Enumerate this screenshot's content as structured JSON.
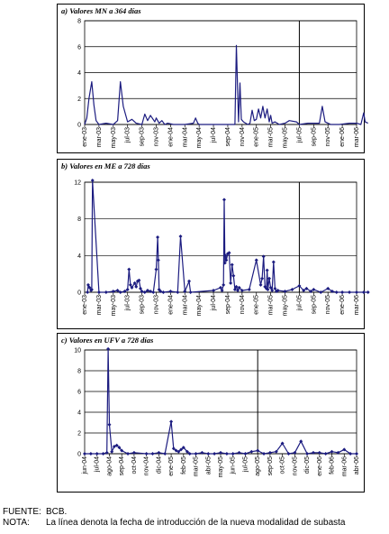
{
  "chart_data": [
    {
      "type": "line",
      "title": "a) Valores MN a 364 días",
      "ylim": [
        0,
        8
      ],
      "yticks": [
        0,
        2,
        4,
        6,
        8
      ],
      "grid": true,
      "x_labels": [
        "ene-03",
        "mar-03",
        "may-03",
        "jul-03",
        "sep-03",
        "nov-03",
        "ene-04",
        "mar-04",
        "may-04",
        "jul-04",
        "sep-04",
        "nov-04",
        "ene-05",
        "mar-05",
        "may-05",
        "jul-05",
        "sep-05",
        "nov-05",
        "ene-06",
        "mar-06"
      ],
      "vline_at": "jul-05",
      "series": [
        {
          "x": [
            0,
            0.15,
            0.3,
            0.5,
            0.65,
            0.8,
            1.0,
            1.5,
            2.0,
            2.3,
            2.5,
            2.7,
            3.0,
            3.3,
            3.6,
            4.0,
            4.2,
            4.4,
            4.6,
            4.9,
            5.0,
            5.2,
            5.4,
            5.6,
            5.8,
            6.2,
            7.0,
            7.6,
            7.75,
            7.9,
            8.0,
            9.0,
            10.0,
            10.5,
            10.6,
            10.75,
            10.85,
            10.95,
            11.1,
            11.4,
            11.55,
            11.7,
            11.85,
            12.0,
            12.15,
            12.3,
            12.45,
            12.6,
            12.75,
            12.9,
            13.0,
            13.1,
            13.3,
            13.6,
            14.0,
            14.3,
            14.8,
            15.0,
            15.6,
            16.4,
            16.6,
            16.8,
            17.0,
            17.2,
            17.8,
            18.5,
            19.0,
            19.3,
            19.5,
            19.6,
            19.8
          ],
          "y": [
            0,
            0.5,
            2.0,
            3.3,
            1.5,
            0.3,
            0,
            0.1,
            0,
            0.3,
            3.3,
            1.4,
            0.2,
            0.4,
            0.1,
            0,
            0.8,
            0.3,
            0.7,
            0.2,
            0.5,
            0.1,
            0.3,
            0,
            0.1,
            0,
            0,
            0.1,
            0.5,
            0.1,
            0,
            0,
            0,
            0,
            6.1,
            0.2,
            3.2,
            0.4,
            0.2,
            0,
            0.1,
            1.1,
            0.3,
            0.4,
            1.2,
            0.5,
            1.4,
            0.5,
            1.2,
            0.2,
            0.7,
            0.1,
            0.2,
            0,
            0.1,
            0.3,
            0.2,
            0,
            0.1,
            0.1,
            1.4,
            0.2,
            0.1,
            0,
            0,
            0.1,
            0.1,
            0,
            0.9,
            0.2,
            0.1
          ]
        }
      ]
    },
    {
      "type": "line",
      "title": "b) Valores en ME a 728 días",
      "ylim": [
        0,
        12
      ],
      "yticks": [
        0,
        4,
        8,
        12
      ],
      "grid": true,
      "x_labels": [
        "ene-03",
        "mar-03",
        "may-03",
        "jul-03",
        "sep-03",
        "nov-03",
        "ene-04",
        "mar-04",
        "may-04",
        "jul-04",
        "sep-04",
        "nov-04",
        "ene-05",
        "mar-05",
        "may-05",
        "jul-05",
        "sep-05",
        "nov-05",
        "ene-06",
        "mar-06"
      ],
      "vline_at": "jul-05",
      "series": [
        {
          "x": [
            0.2,
            0.25,
            0.35,
            0.45,
            0.5,
            0.55,
            1.0,
            1.5,
            2.0,
            2.3,
            2.5,
            2.8,
            3.0,
            3.1,
            3.2,
            3.3,
            3.5,
            3.6,
            3.7,
            3.8,
            3.9,
            4.0,
            4.2,
            4.4,
            4.6,
            4.8,
            5.0,
            5.1,
            5.15,
            5.2,
            5.3,
            5.5,
            6.0,
            6.5,
            6.7,
            7.0,
            7.3,
            7.4,
            9.0,
            9.5,
            9.6,
            9.7,
            9.75,
            9.8,
            9.85,
            9.9,
            10.0,
            10.1,
            10.2,
            10.3,
            10.4,
            10.5,
            10.6,
            10.7,
            10.8,
            11.0,
            11.5,
            12.0,
            12.3,
            12.4,
            12.5,
            12.6,
            12.7,
            12.75,
            12.8,
            12.9,
            13.0,
            13.1,
            13.2,
            13.3,
            13.4,
            13.5,
            14.0,
            14.5,
            15.0,
            15.3,
            15.5,
            15.8,
            16.0,
            16.5,
            17.0,
            17.3,
            17.6,
            18.0,
            18.5,
            19.0,
            19.5,
            19.8
          ],
          "y": [
            0,
            0.8,
            0.5,
            0.2,
            0.3,
            12.2,
            0,
            0,
            0.1,
            0.2,
            0,
            0.1,
            0.3,
            2.5,
            0.8,
            0.5,
            1.0,
            0.6,
            1.2,
            1.3,
            0.4,
            0.1,
            0,
            0.2,
            0.1,
            0,
            2.5,
            6.0,
            3.5,
            0.3,
            0.1,
            0,
            0.1,
            0,
            6.1,
            0.1,
            1.2,
            0,
            0.2,
            0.5,
            0.2,
            0.8,
            10.1,
            3.2,
            4.0,
            3.5,
            4.2,
            4.3,
            1.0,
            3.0,
            1.8,
            0.3,
            0.6,
            0.2,
            0.5,
            0.2,
            0.3,
            3.5,
            0.8,
            1.5,
            3.9,
            0.6,
            0.4,
            2.4,
            0.3,
            1.5,
            0.5,
            0.2,
            3.3,
            0.4,
            0.1,
            0.2,
            0.1,
            0.3,
            0.7,
            0.2,
            0.4,
            0.1,
            0.3,
            0,
            0.4,
            0.1,
            0,
            0,
            0,
            0,
            0,
            0
          ]
        }
      ]
    },
    {
      "type": "line",
      "title": "c) Valores en UFV a 728 días",
      "ylim": [
        0,
        10
      ],
      "yticks": [
        0,
        2,
        4,
        6,
        8,
        10
      ],
      "grid": true,
      "x_labels": [
        "jun-04",
        "jul-04",
        "ago-04",
        "sep-04",
        "oct-04",
        "nov-04",
        "dic-04",
        "ene-05",
        "feb-05",
        "mar-05",
        "abr-05",
        "may-05",
        "jun-05",
        "jul-05",
        "ago-05",
        "sep-05",
        "oct-05",
        "nov-05",
        "dic-05",
        "ene-06",
        "feb-06",
        "mar-06",
        "abr-06"
      ],
      "vline_at": "ago-05",
      "series": [
        {
          "x": [
            0,
            0.5,
            1.0,
            1.5,
            1.8,
            1.9,
            2.0,
            2.2,
            2.4,
            2.6,
            2.8,
            3.0,
            3.5,
            4.0,
            5.0,
            5.5,
            6.0,
            6.5,
            7.0,
            7.2,
            7.4,
            7.6,
            7.8,
            8.0,
            8.3,
            8.5,
            9.0,
            9.5,
            10.0,
            10.5,
            11.0,
            11.5,
            12.0,
            12.5,
            13.0,
            13.5,
            14.0,
            14.5,
            15.0,
            15.5,
            16.0,
            16.5,
            17.0,
            17.5,
            18.0,
            18.5,
            19.0,
            19.5,
            20.0,
            20.5,
            21.0,
            21.5,
            22.0
          ],
          "y": [
            0,
            0,
            0,
            0,
            0.1,
            10.1,
            2.8,
            0.2,
            0.7,
            0.8,
            0.6,
            0.3,
            0,
            0.1,
            0,
            0,
            0.1,
            0,
            3.1,
            0.5,
            0.3,
            0.2,
            0.4,
            0.6,
            0.2,
            0,
            0,
            0.1,
            0,
            0,
            0.1,
            0,
            0,
            0.1,
            0,
            0.2,
            0.3,
            0,
            0.1,
            0.2,
            1.0,
            0,
            0.1,
            1.2,
            0,
            0.1,
            0.1,
            0,
            0.2,
            0.1,
            0.4,
            0,
            0
          ]
        }
      ]
    }
  ],
  "notes": {
    "source_key": "FUENTE:",
    "source_value": "BCB.",
    "note_key": "NOTA:",
    "note_value": "La línea denota la fecha de introducción de la nueva modalidad de subasta"
  }
}
